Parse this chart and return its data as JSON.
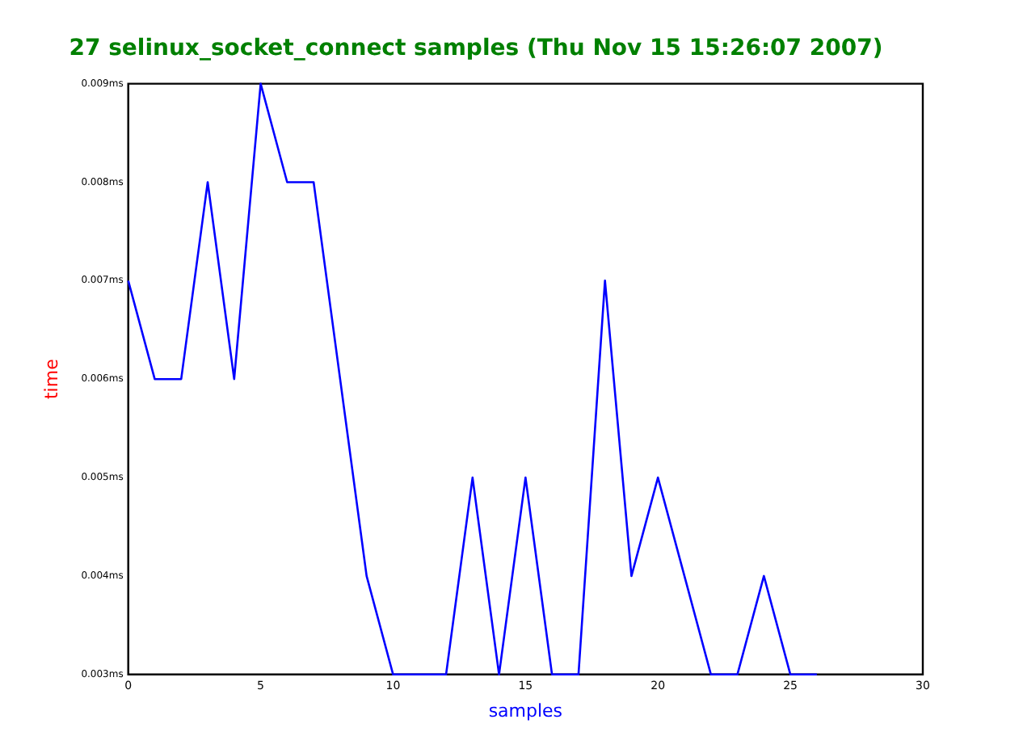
{
  "chart_data": {
    "type": "line",
    "title": "27 selinux_socket_connect samples (Thu Nov 15 15:26:07 2007)",
    "xlabel": "samples",
    "ylabel": "time",
    "x": [
      0,
      1,
      2,
      3,
      4,
      5,
      6,
      7,
      8,
      9,
      10,
      11,
      12,
      13,
      14,
      15,
      16,
      17,
      18,
      19,
      20,
      21,
      22,
      23,
      24,
      25,
      26
    ],
    "series": [
      {
        "color": "#0000ff",
        "values": [
          0.007,
          0.006,
          0.006,
          0.008,
          0.006,
          0.009,
          0.008,
          0.008,
          0.006,
          0.004,
          0.003,
          0.003,
          0.003,
          0.005,
          0.003,
          0.005,
          0.003,
          0.003,
          0.007,
          0.004,
          0.005,
          0.004,
          0.003,
          0.003,
          0.004,
          0.003,
          0.003
        ]
      }
    ],
    "xlim": [
      0,
      30
    ],
    "xticks": [
      0,
      5,
      10,
      15,
      20,
      25,
      30
    ],
    "ylim": [
      0.003,
      0.009
    ],
    "yticks": [
      {
        "value": 0.003,
        "label": "0.003ms"
      },
      {
        "value": 0.004,
        "label": "0.004ms"
      },
      {
        "value": 0.005,
        "label": "0.005ms"
      },
      {
        "value": 0.006,
        "label": "0.006ms"
      },
      {
        "value": 0.007,
        "label": "0.007ms"
      },
      {
        "value": 0.008,
        "label": "0.008ms"
      },
      {
        "value": 0.009,
        "label": "0.009ms"
      }
    ],
    "grid": false,
    "legend": false,
    "marker": "none",
    "line_style": "solid"
  }
}
